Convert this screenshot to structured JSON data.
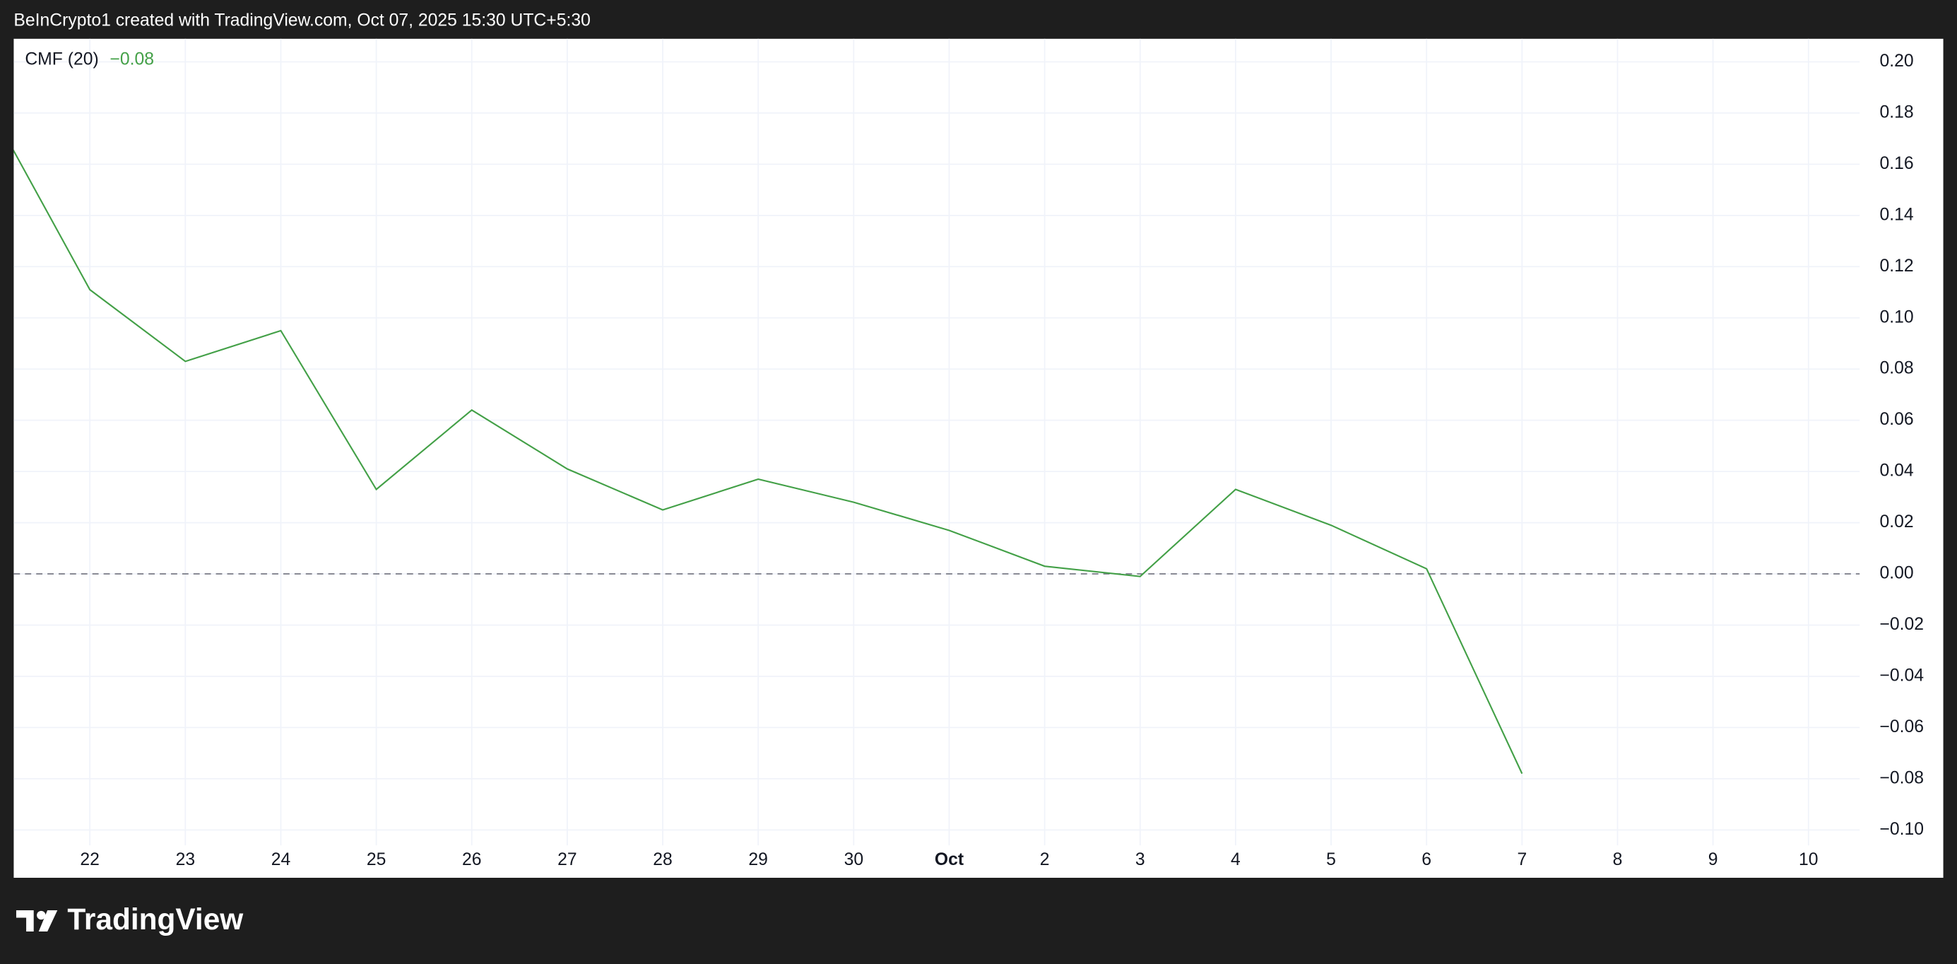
{
  "header": {
    "text": "BeInCrypto1 created with TradingView.com, Oct 07, 2025 15:30 UTC+5:30"
  },
  "branding": {
    "text": "TradingView"
  },
  "chart_data": {
    "type": "line",
    "title": "CMF (20)",
    "last_value_label": "−0.08",
    "categories": [
      null,
      "22",
      "23",
      "24",
      "25",
      "26",
      "27",
      "28",
      "29",
      "30",
      "Oct",
      "2",
      "3",
      "4",
      "5",
      "6",
      "7",
      "8",
      "9",
      "10"
    ],
    "bold_category_index": 10,
    "series": [
      {
        "name": "CMF (20)",
        "color": "#43a047",
        "values": [
          0.179,
          0.111,
          0.083,
          0.095,
          0.033,
          0.064,
          0.041,
          0.025,
          0.037,
          0.028,
          0.017,
          0.003,
          -0.001,
          0.033,
          0.019,
          0.002,
          -0.078,
          null,
          null,
          null
        ]
      }
    ],
    "ylim": [
      -0.106,
      0.209
    ],
    "yticks": [
      {
        "value": -0.1,
        "label": "−0.10"
      },
      {
        "value": -0.08,
        "label": "−0.08"
      },
      {
        "value": -0.06,
        "label": "−0.06"
      },
      {
        "value": -0.04,
        "label": "−0.04"
      },
      {
        "value": -0.02,
        "label": "−0.02"
      },
      {
        "value": 0,
        "label": "0.00"
      },
      {
        "value": 0.02,
        "label": "0.02"
      },
      {
        "value": 0.04,
        "label": "0.04"
      },
      {
        "value": 0.06,
        "label": "0.06"
      },
      {
        "value": 0.08,
        "label": "0.08"
      },
      {
        "value": 0.1,
        "label": "0.10"
      },
      {
        "value": 0.12,
        "label": "0.12"
      },
      {
        "value": 0.14,
        "label": "0.14"
      },
      {
        "value": 0.16,
        "label": "0.16"
      },
      {
        "value": 0.18,
        "label": "0.18"
      },
      {
        "value": 0.2,
        "label": "0.20"
      }
    ],
    "grid": true,
    "zero_line": true
  }
}
